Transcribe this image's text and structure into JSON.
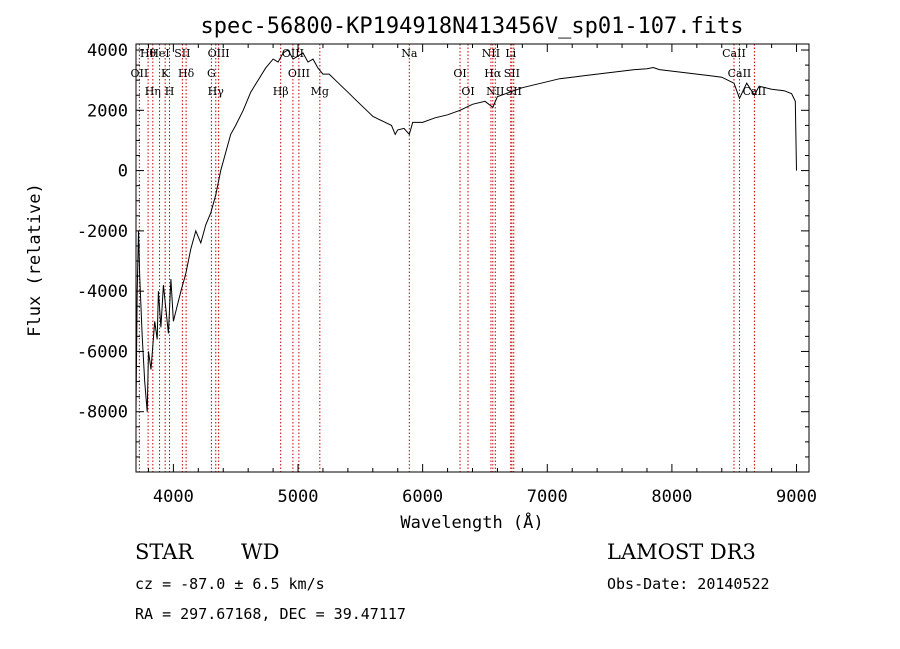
{
  "chart_data": {
    "type": "line",
    "title": "spec-56800-KP194918N413456V_sp01-107.fits",
    "xlabel": "Wavelength (Å)",
    "ylabel": "Flux (relative)",
    "xlim": [
      3700,
      9100
    ],
    "ylim": [
      -10000,
      4200
    ],
    "xticks": [
      4000,
      5000,
      6000,
      7000,
      8000,
      9000
    ],
    "yticks": [
      -8000,
      -6000,
      -4000,
      -2000,
      0,
      2000,
      4000
    ],
    "xtick_labels": [
      "4000",
      "5000",
      "6000",
      "7000",
      "8000",
      "9000"
    ],
    "ytick_labels": [
      "-8000",
      "-6000",
      "-4000",
      "-2000",
      "0",
      "2000",
      "4000"
    ],
    "grid": false,
    "series": [
      {
        "name": "spectrum",
        "x": [
          3700,
          3710,
          3720,
          3730,
          3750,
          3770,
          3790,
          3800,
          3820,
          3850,
          3870,
          3880,
          3900,
          3920,
          3940,
          3960,
          3980,
          4000,
          4030,
          4060,
          4100,
          4140,
          4180,
          4220,
          4260,
          4300,
          4340,
          4380,
          4420,
          4460,
          4500,
          4560,
          4620,
          4680,
          4740,
          4800,
          4840,
          4880,
          4920,
          4960,
          5000,
          5040,
          5080,
          5120,
          5160,
          5200,
          5250,
          5300,
          5350,
          5400,
          5450,
          5500,
          5550,
          5600,
          5650,
          5700,
          5750,
          5780,
          5800,
          5850,
          5893,
          5920,
          6000,
          6100,
          6200,
          6300,
          6400,
          6500,
          6563,
          6600,
          6700,
          6800,
          6900,
          7000,
          7100,
          7200,
          7300,
          7400,
          7500,
          7600,
          7700,
          7800,
          7850,
          7900,
          8000,
          8100,
          8200,
          8300,
          8400,
          8498,
          8542,
          8600,
          8662,
          8700,
          8800,
          8900,
          8960,
          8990,
          9000
        ],
        "values": [
          -8000,
          -4000,
          -2000,
          -3500,
          -5500,
          -7000,
          -8000,
          -6000,
          -6600,
          -5000,
          -5600,
          -4000,
          -5200,
          -3800,
          -4600,
          -5400,
          -3600,
          -5000,
          -4500,
          -4000,
          -3400,
          -2600,
          -2000,
          -2400,
          -1800,
          -1400,
          -800,
          0,
          600,
          1200,
          1500,
          2000,
          2600,
          3000,
          3400,
          3700,
          3600,
          3900,
          4000,
          3700,
          3800,
          3900,
          3600,
          3700,
          3400,
          3200,
          3200,
          3000,
          2800,
          2600,
          2400,
          2200,
          2000,
          1800,
          1700,
          1600,
          1500,
          1200,
          1350,
          1400,
          1200,
          1600,
          1600,
          1750,
          1850,
          2000,
          2200,
          2300,
          2100,
          2450,
          2600,
          2750,
          2850,
          2950,
          3050,
          3100,
          3150,
          3200,
          3250,
          3300,
          3350,
          3380,
          3420,
          3350,
          3300,
          3250,
          3200,
          3150,
          3100,
          2900,
          2400,
          2900,
          2500,
          2800,
          2700,
          2650,
          2550,
          2300,
          0
        ]
      }
    ],
    "lines": [
      {
        "name": "Hθ",
        "wavelength": 3797
      },
      {
        "name": "OII",
        "wavelength": 3727
      },
      {
        "name": "Hη",
        "wavelength": 3835
      },
      {
        "name": "HeI",
        "wavelength": 3889
      },
      {
        "name": "K",
        "wavelength": 3934
      },
      {
        "name": "H",
        "wavelength": 3969
      },
      {
        "name": "SII",
        "wavelength": 4072
      },
      {
        "name": "Hδ",
        "wavelength": 4102
      },
      {
        "name": "Hγ",
        "wavelength": 4340
      },
      {
        "name": "OIII",
        "wavelength": 4363
      },
      {
        "name": "G",
        "wavelength": 4305
      },
      {
        "name": "Hβ",
        "wavelength": 4861
      },
      {
        "name": "OIII",
        "wavelength": 4959
      },
      {
        "name": "OIII",
        "wavelength": 5007
      },
      {
        "name": "Mg",
        "wavelength": 5175
      },
      {
        "name": "Na",
        "wavelength": 5893
      },
      {
        "name": "OI",
        "wavelength": 6300
      },
      {
        "name": "OI",
        "wavelength": 6364
      },
      {
        "name": "NII",
        "wavelength": 6548
      },
      {
        "name": "Hα",
        "wavelength": 6563
      },
      {
        "name": "NII",
        "wavelength": 6583
      },
      {
        "name": "Li",
        "wavelength": 6707
      },
      {
        "name": "SII",
        "wavelength": 6716
      },
      {
        "name": "SII",
        "wavelength": 6731
      },
      {
        "name": "CaII",
        "wavelength": 8498
      },
      {
        "name": "CaII",
        "wavelength": 8542
      },
      {
        "name": "CaII",
        "wavelength": 8662
      }
    ]
  },
  "info": {
    "class": "STAR",
    "subclass": "WD",
    "survey": "LAMOST DR3",
    "cz": "cz = -87.0 ± 6.5 km/s",
    "obs_date": "Obs-Date: 20140522",
    "coords": "RA = 297.67168, DEC =  39.47117"
  },
  "colors": {
    "spectrum": "#000000",
    "line_marker": "#cc0000"
  }
}
